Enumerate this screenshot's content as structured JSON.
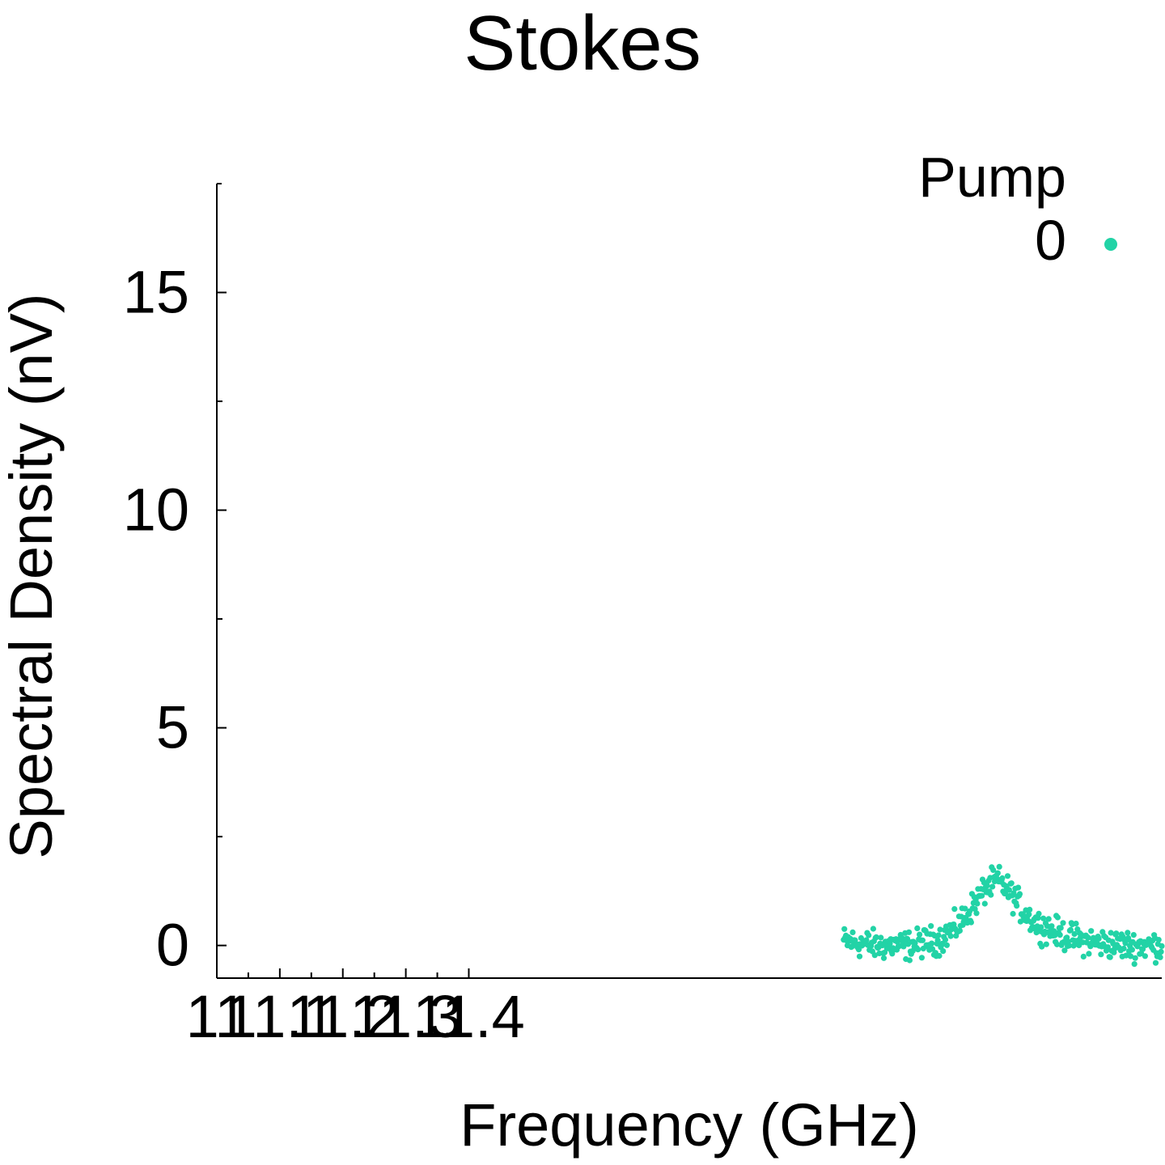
{
  "chart_data": {
    "type": "scatter",
    "title": "Stokes",
    "xlabel": "Frequency (GHz)",
    "ylabel": "Spectral Density (nV)",
    "xlim": [
      11.0,
      12.5
    ],
    "ylim": [
      -0.75,
      17.5
    ],
    "x_ticks": [
      {
        "value": 11.0,
        "label": "11"
      },
      {
        "value": 11.1,
        "label": "11.1"
      },
      {
        "value": 11.2,
        "label": "11.2"
      },
      {
        "value": 11.3,
        "label": "11.3"
      },
      {
        "value": 11.4,
        "label": "11.4"
      }
    ],
    "x_minor_ticks": [
      11.05,
      11.15,
      11.25,
      11.35
    ],
    "y_ticks": [
      {
        "value": 0,
        "label": "0"
      },
      {
        "value": 5,
        "label": "5"
      },
      {
        "value": 10,
        "label": "10"
      },
      {
        "value": 15,
        "label": "15"
      }
    ],
    "y_minor_ticks": [
      2.5,
      7.5,
      12.5
    ],
    "legend": {
      "title": "Pump",
      "placement": "top-right",
      "entries": [
        {
          "label": "0",
          "color": "#22d3a6"
        }
      ]
    },
    "grid": false,
    "series": [
      {
        "name": "0",
        "color": "#22d3a6",
        "x_start": 11.995,
        "x_end": 12.5,
        "points": 420,
        "x": [
          11.995,
          12.05,
          12.1,
          12.15,
          12.18,
          12.2,
          12.22,
          12.24,
          12.26,
          12.28,
          12.3,
          12.35,
          12.4,
          12.45,
          12.5
        ],
        "y": [
          0.1,
          0.0,
          0.0,
          0.15,
          0.5,
          0.9,
          1.3,
          1.5,
          1.2,
          0.8,
          0.5,
          0.2,
          0.05,
          0.0,
          0.0
        ]
      }
    ]
  }
}
